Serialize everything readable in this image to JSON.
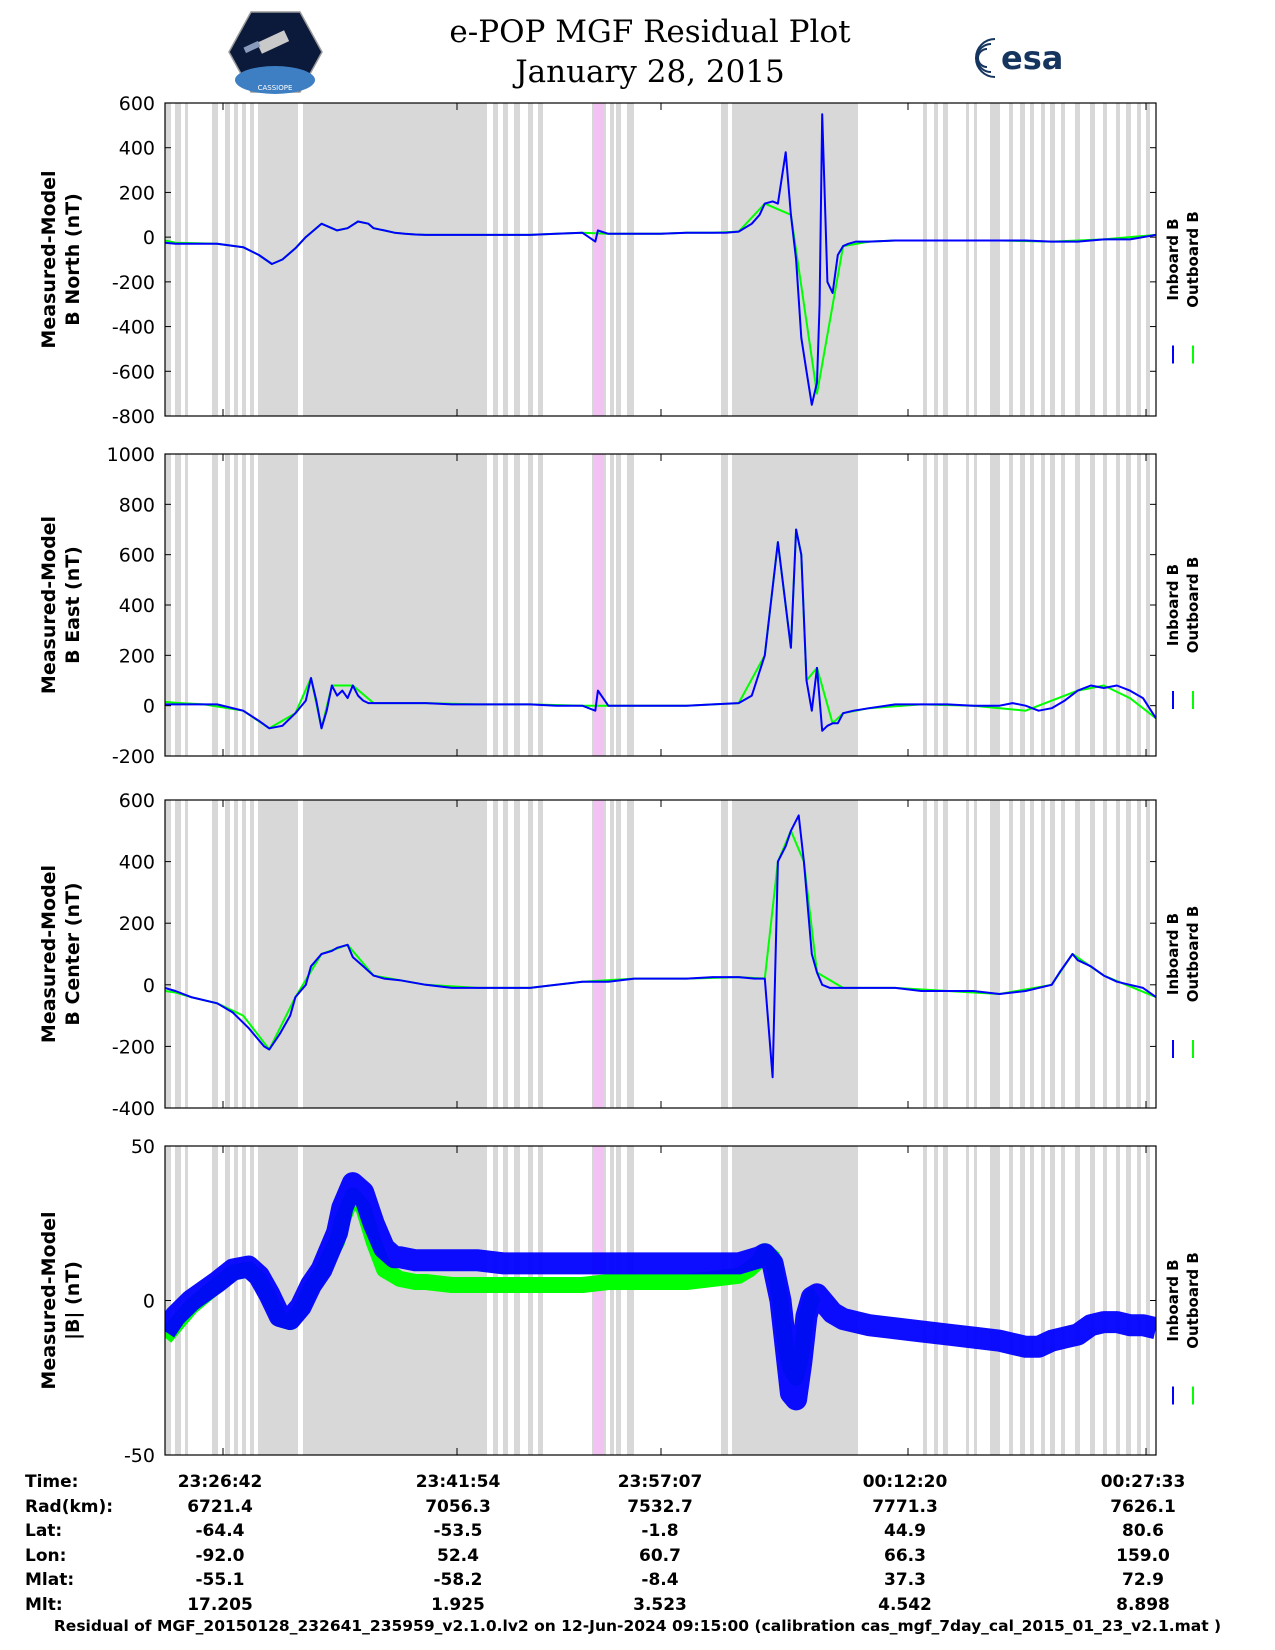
{
  "header": {
    "title": "e-POP MGF Residual Plot",
    "date": "January 28, 2015",
    "esa_logo_text": "esa",
    "cassiope_logo_text": "CASSIOPE"
  },
  "legend": {
    "inboard": "Inboard B",
    "outboard": "Outboard B"
  },
  "colors": {
    "inboard": "#0000ff",
    "outboard": "#00ff00",
    "gap": "#d8d8d8",
    "highlight": "#f2c2f2"
  },
  "chart_data": [
    {
      "type": "line",
      "name": "B North",
      "ylabel": [
        "Measured-Model",
        "B North (nT)"
      ],
      "ylim": [
        -800,
        600
      ],
      "yticks": [
        600,
        400,
        200,
        0,
        -200,
        -400,
        -600,
        -800
      ],
      "xlim": [
        0,
        3800
      ],
      "series": [
        {
          "name": "Inboard B",
          "x": [
            0,
            40,
            200,
            300,
            360,
            410,
            450,
            500,
            540,
            600,
            660,
            700,
            740,
            780,
            800,
            840,
            880,
            920,
            960,
            1000,
            1100,
            1200,
            1300,
            1400,
            1500,
            1600,
            1650,
            1660,
            1700,
            1800,
            1900,
            2000,
            2100,
            2150,
            2200,
            2250,
            2280,
            2300,
            2330,
            2350,
            2380,
            2400,
            2420,
            2440,
            2460,
            2480,
            2500,
            2510,
            2520,
            2540,
            2560,
            2580,
            2600,
            2620,
            2650,
            2700,
            2800,
            2900,
            3000,
            3100,
            3200,
            3300,
            3400,
            3500,
            3600,
            3700,
            3800
          ],
          "values": [
            -25,
            -30,
            -30,
            -45,
            -80,
            -120,
            -100,
            -50,
            0,
            60,
            30,
            40,
            70,
            60,
            40,
            30,
            20,
            15,
            12,
            10,
            10,
            10,
            10,
            10,
            15,
            20,
            -20,
            30,
            15,
            15,
            15,
            20,
            20,
            20,
            25,
            60,
            100,
            150,
            160,
            150,
            380,
            100,
            -100,
            -450,
            -600,
            -750,
            -650,
            -300,
            550,
            -200,
            -250,
            -80,
            -40,
            -30,
            -20,
            -20,
            -15,
            -15,
            -15,
            -15,
            -15,
            -15,
            -20,
            -20,
            -10,
            -10,
            10
          ]
        },
        {
          "name": "Outboard B",
          "x": [
            0,
            40,
            200,
            300,
            360,
            410,
            450,
            500,
            540,
            600,
            660,
            700,
            740,
            780,
            800,
            840,
            880,
            920,
            960,
            1000,
            1100,
            1200,
            1300,
            1400,
            1500,
            1600,
            1700,
            1800,
            1900,
            2000,
            2100,
            2200,
            2300,
            2400,
            2500,
            2600,
            2700,
            2800,
            3000,
            3200,
            3400,
            3600,
            3800
          ],
          "values": [
            -15,
            -25,
            -30,
            -45,
            -80,
            -120,
            -100,
            -50,
            0,
            60,
            30,
            40,
            70,
            60,
            40,
            30,
            20,
            15,
            12,
            10,
            10,
            10,
            10,
            10,
            15,
            20,
            15,
            15,
            15,
            20,
            20,
            25,
            150,
            100,
            -700,
            -40,
            -20,
            -15,
            -15,
            -15,
            -20,
            -10,
            10
          ]
        }
      ]
    },
    {
      "type": "line",
      "name": "B East",
      "ylabel": [
        "Measured-Model",
        "B East (nT)"
      ],
      "ylim": [
        -200,
        1000
      ],
      "yticks": [
        1000,
        800,
        600,
        400,
        200,
        0,
        -200
      ],
      "xlim": [
        0,
        3800
      ],
      "series": [
        {
          "name": "Inboard B",
          "x": [
            0,
            60,
            150,
            200,
            300,
            360,
            400,
            450,
            500,
            540,
            560,
            580,
            600,
            620,
            640,
            660,
            680,
            700,
            720,
            740,
            760,
            780,
            800,
            840,
            900,
            1000,
            1100,
            1200,
            1300,
            1400,
            1500,
            1600,
            1650,
            1660,
            1700,
            1800,
            1900,
            2000,
            2100,
            2200,
            2250,
            2300,
            2350,
            2400,
            2420,
            2440,
            2460,
            2480,
            2500,
            2520,
            2540,
            2560,
            2580,
            2600,
            2640,
            2700,
            2800,
            2900,
            3000,
            3100,
            3200,
            3250,
            3300,
            3350,
            3400,
            3450,
            3500,
            3550,
            3600,
            3650,
            3700,
            3750,
            3800
          ],
          "values": [
            5,
            5,
            5,
            5,
            -20,
            -60,
            -90,
            -80,
            -30,
            20,
            110,
            20,
            -90,
            -20,
            80,
            40,
            60,
            30,
            80,
            40,
            20,
            10,
            10,
            10,
            10,
            10,
            5,
            5,
            5,
            5,
            0,
            0,
            -20,
            60,
            0,
            0,
            0,
            0,
            5,
            10,
            40,
            200,
            650,
            230,
            700,
            600,
            100,
            -20,
            150,
            -100,
            -80,
            -70,
            -70,
            -30,
            -20,
            -10,
            5,
            5,
            5,
            0,
            0,
            10,
            0,
            -20,
            -10,
            20,
            60,
            80,
            70,
            80,
            60,
            30,
            -50
          ]
        },
        {
          "name": "Outboard B",
          "x": [
            0,
            60,
            150,
            300,
            400,
            500,
            560,
            600,
            640,
            720,
            800,
            900,
            1000,
            1200,
            1400,
            1600,
            1800,
            2000,
            2200,
            2300,
            2350,
            2400,
            2420,
            2440,
            2460,
            2500,
            2560,
            2600,
            2700,
            2900,
            3100,
            3300,
            3500,
            3600,
            3700,
            3800
          ],
          "values": [
            15,
            10,
            5,
            -20,
            -90,
            -30,
            110,
            -90,
            80,
            80,
            10,
            10,
            10,
            5,
            5,
            0,
            0,
            0,
            10,
            200,
            650,
            230,
            700,
            600,
            100,
            150,
            -70,
            -30,
            -10,
            5,
            0,
            -20,
            60,
            80,
            30,
            -50
          ]
        }
      ]
    },
    {
      "type": "line",
      "name": "B Center",
      "ylabel": [
        "Measured-Model",
        "B Center (nT)"
      ],
      "ylim": [
        -400,
        600
      ],
      "yticks": [
        600,
        400,
        200,
        0,
        -200,
        -400
      ],
      "xlim": [
        0,
        3800
      ],
      "series": [
        {
          "name": "Inboard B",
          "x": [
            0,
            40,
            100,
            200,
            260,
            320,
            380,
            400,
            440,
            480,
            500,
            540,
            560,
            600,
            640,
            660,
            700,
            720,
            760,
            800,
            840,
            900,
            1000,
            1100,
            1200,
            1300,
            1400,
            1500,
            1600,
            1700,
            1800,
            1900,
            2000,
            2100,
            2200,
            2260,
            2300,
            2330,
            2350,
            2380,
            2400,
            2430,
            2450,
            2480,
            2500,
            2520,
            2550,
            2600,
            2700,
            2800,
            2900,
            3000,
            3100,
            3200,
            3300,
            3400,
            3430,
            3480,
            3500,
            3550,
            3600,
            3650,
            3700,
            3750,
            3800
          ],
          "values": [
            -10,
            -20,
            -40,
            -60,
            -90,
            -140,
            -200,
            -210,
            -160,
            -100,
            -40,
            0,
            60,
            100,
            110,
            120,
            130,
            90,
            60,
            30,
            20,
            15,
            0,
            -10,
            -10,
            -10,
            -10,
            0,
            10,
            10,
            20,
            20,
            20,
            25,
            25,
            20,
            20,
            -300,
            400,
            450,
            500,
            550,
            400,
            100,
            40,
            0,
            -10,
            -10,
            -10,
            -10,
            -20,
            -20,
            -20,
            -30,
            -20,
            0,
            40,
            100,
            80,
            60,
            30,
            10,
            0,
            -10,
            -40
          ]
        },
        {
          "name": "Outboard B",
          "x": [
            0,
            40,
            100,
            200,
            300,
            400,
            500,
            600,
            700,
            800,
            1000,
            1200,
            1400,
            1600,
            1800,
            2000,
            2200,
            2300,
            2350,
            2400,
            2450,
            2500,
            2600,
            2800,
            3000,
            3200,
            3400,
            3480,
            3600,
            3800
          ],
          "values": [
            -20,
            -25,
            -40,
            -60,
            -100,
            -210,
            -40,
            100,
            130,
            30,
            0,
            -10,
            -10,
            10,
            20,
            20,
            25,
            20,
            400,
            500,
            400,
            40,
            -10,
            -10,
            -20,
            -30,
            0,
            100,
            30,
            -40
          ]
        }
      ]
    },
    {
      "type": "line",
      "name": "|B|",
      "ylabel": [
        "Measured-Model",
        "|B| (nT)"
      ],
      "ylim": [
        -50,
        50
      ],
      "yticks": [
        50,
        0,
        -50
      ],
      "xlim": [
        0,
        3800
      ],
      "series": [
        {
          "name": "Inboard B",
          "x": [
            0,
            40,
            100,
            200,
            260,
            320,
            360,
            400,
            440,
            480,
            520,
            560,
            600,
            640,
            660,
            680,
            720,
            760,
            800,
            840,
            880,
            900,
            960,
            1000,
            1100,
            1200,
            1300,
            1400,
            1500,
            1600,
            1700,
            1800,
            1900,
            2000,
            2100,
            2200,
            2240,
            2280,
            2300,
            2330,
            2360,
            2380,
            2400,
            2420,
            2440,
            2460,
            2480,
            2500,
            2520,
            2540,
            2560,
            2600,
            2700,
            2800,
            2900,
            3000,
            3100,
            3200,
            3250,
            3300,
            3350,
            3400,
            3450,
            3500,
            3550,
            3600,
            3650,
            3700,
            3750,
            3800
          ],
          "values": [
            -10,
            -5,
            0,
            6,
            10,
            11,
            8,
            2,
            -5,
            -6,
            -2,
            5,
            10,
            18,
            22,
            30,
            38,
            35,
            25,
            17,
            14,
            14,
            13,
            13,
            13,
            13,
            12,
            12,
            12,
            12,
            12,
            12,
            12,
            12,
            12,
            12,
            13,
            14,
            15,
            12,
            0,
            -15,
            -30,
            -32,
            -20,
            -5,
            1,
            2,
            0,
            -2,
            -4,
            -6,
            -8,
            -9,
            -10,
            -11,
            -12,
            -13,
            -14,
            -15,
            -15,
            -13,
            -12,
            -11,
            -8,
            -7,
            -7,
            -8,
            -8,
            -9
          ]
        },
        {
          "name": "Outboard B",
          "x": [
            0,
            40,
            100,
            200,
            260,
            320,
            360,
            400,
            440,
            480,
            520,
            560,
            600,
            640,
            660,
            680,
            720,
            760,
            800,
            840,
            880,
            900,
            960,
            1000,
            1100,
            1200,
            1300,
            1400,
            1500,
            1600,
            1700,
            1800,
            1900,
            2000,
            2100,
            2200,
            2240,
            2280,
            2300,
            2330,
            2360,
            2380,
            2400,
            2420,
            2440,
            2460,
            2480,
            2500
          ],
          "values": [
            -12,
            -8,
            -2,
            5,
            9,
            10,
            7,
            1,
            -6,
            -7,
            -3,
            4,
            9,
            16,
            19,
            26,
            34,
            30,
            19,
            10,
            8,
            7,
            6,
            6,
            5,
            5,
            5,
            5,
            5,
            5,
            6,
            6,
            6,
            6,
            7,
            8,
            10,
            13,
            16,
            14,
            0,
            -15,
            -22,
            -25,
            -18,
            -5,
            1,
            2
          ]
        }
      ]
    }
  ],
  "x_axis": {
    "ticks": [
      "23:26:42",
      "23:41:54",
      "23:57:07",
      "00:12:20",
      "00:27:33"
    ]
  },
  "ephemeris": {
    "labels": [
      "Time:",
      "Rad(km):",
      "Lat:",
      "Lon:",
      "Mlat:",
      "Mlt:"
    ],
    "rows": [
      [
        "23:26:42",
        "23:41:54",
        "23:57:07",
        "00:12:20",
        "00:27:33"
      ],
      [
        "6721.4",
        "7056.3",
        "7532.7",
        "7771.3",
        "7626.1"
      ],
      [
        "-64.4",
        "-53.5",
        "-1.8",
        "44.9",
        "80.6"
      ],
      [
        "-92.0",
        "52.4",
        "60.7",
        "66.3",
        "159.0"
      ],
      [
        "-55.1",
        "-58.2",
        "-8.4",
        "37.3",
        "72.9"
      ],
      [
        "17.205",
        "1.925",
        "3.523",
        "4.542",
        "8.898"
      ]
    ]
  },
  "footer": "Residual of MGF_20150128_232641_235959_v2.1.0.lv2 on 12-Jun-2024 09:15:00 (calibration cas_mgf_7day_cal_2015_01_23_v2.1.mat )"
}
